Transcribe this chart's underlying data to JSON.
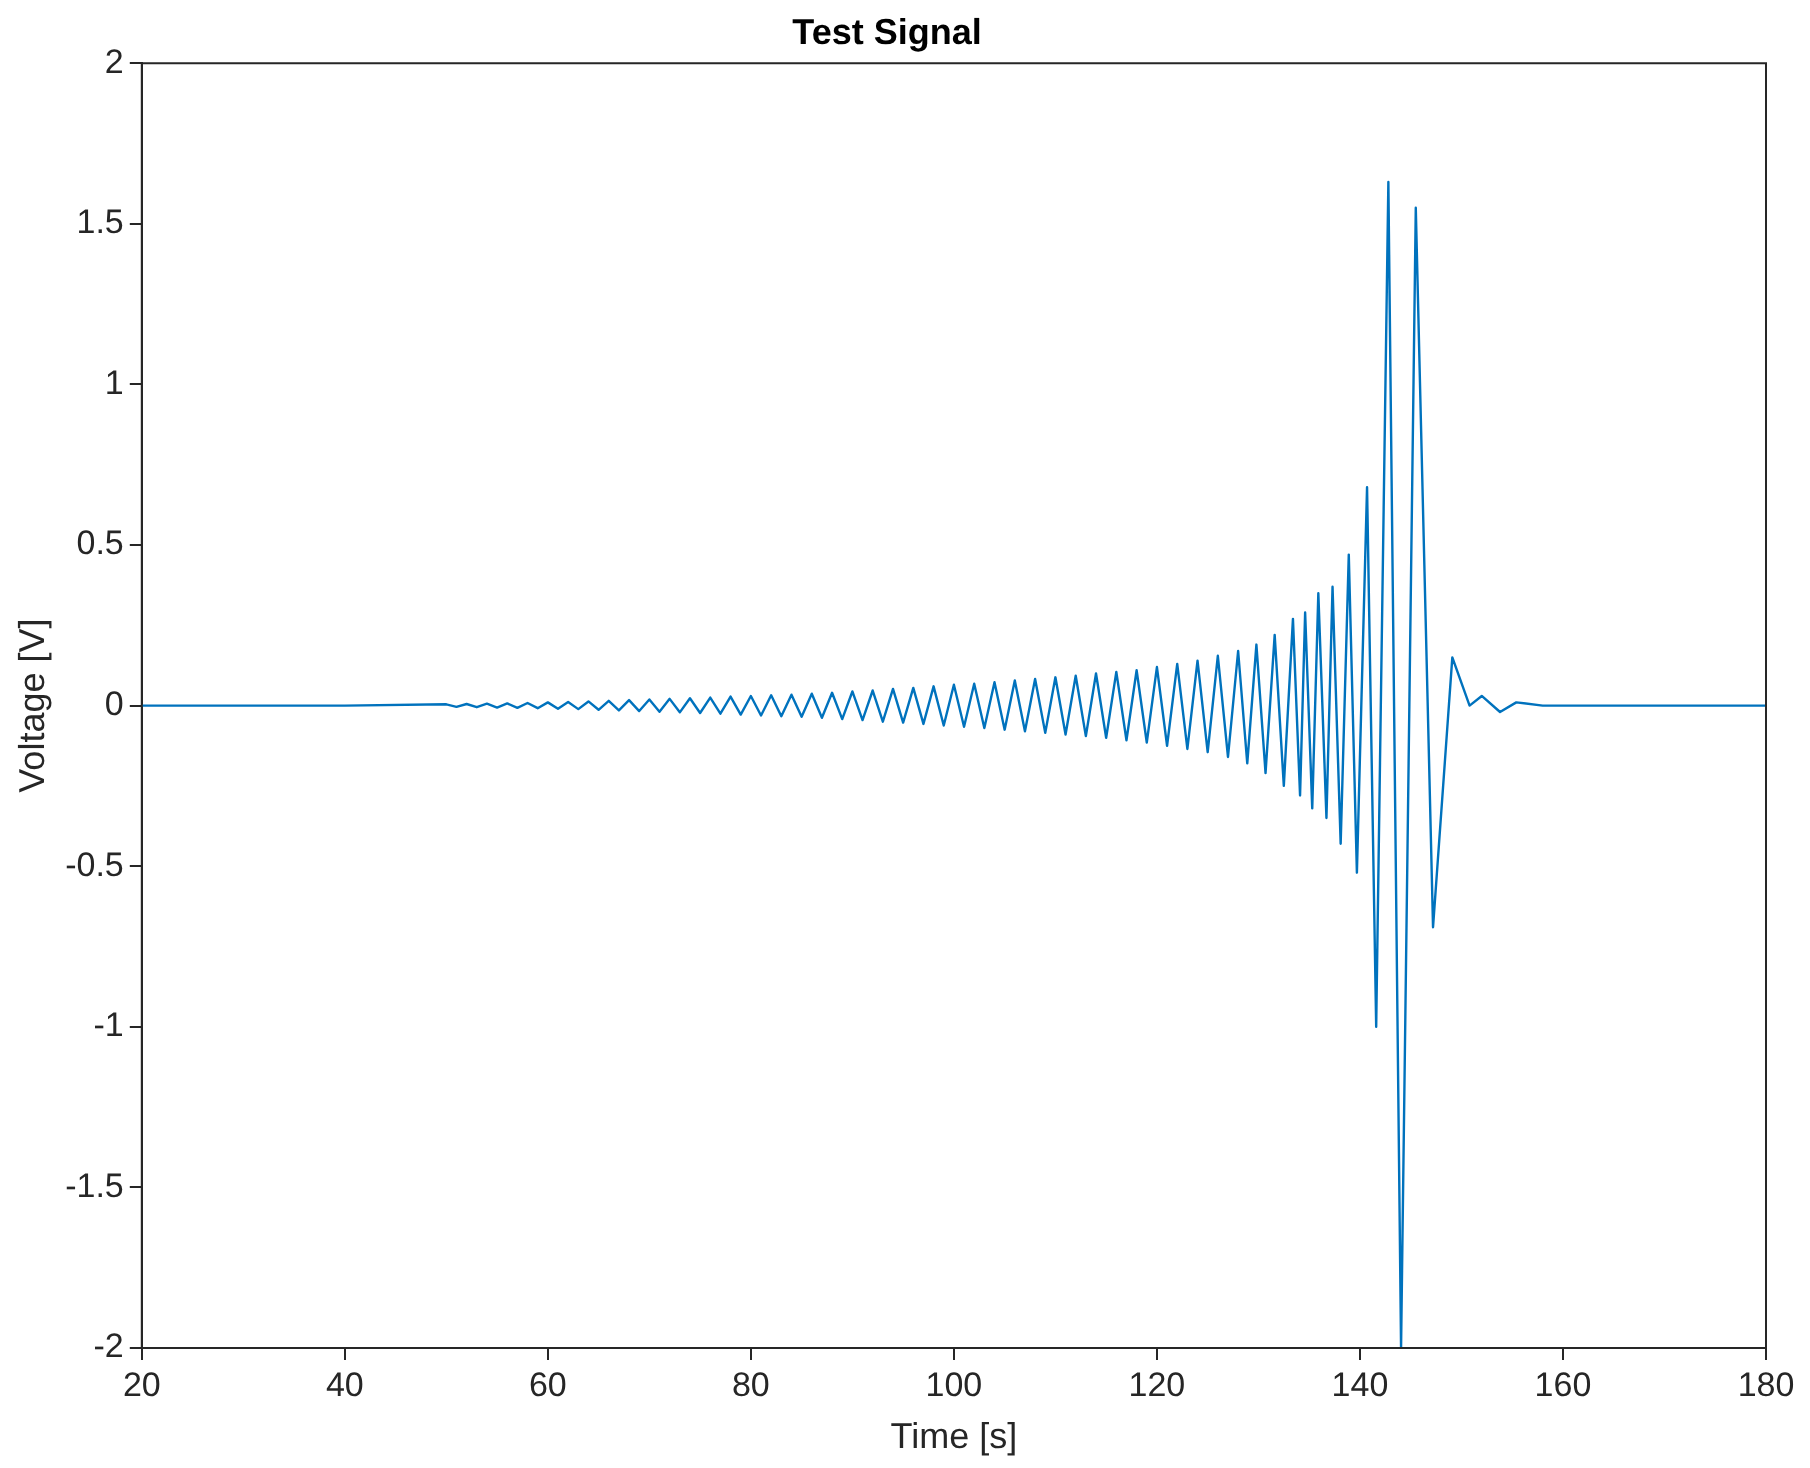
{
  "chart_data": {
    "type": "line",
    "title": "Test Signal",
    "xlabel": "Time [s]",
    "ylabel": "Voltage [V]",
    "xlim": [
      20,
      180
    ],
    "xticks": [
      20,
      40,
      60,
      80,
      100,
      120,
      140,
      160,
      180
    ],
    "ylim": [
      -2,
      2
    ],
    "yticks": [
      -2,
      -1.5,
      -1,
      -0.5,
      0,
      0.5,
      1,
      1.5,
      2
    ],
    "grid": false,
    "legend": false,
    "marker": "none",
    "line_style": "solid",
    "series": [
      {
        "color": "#0072bd",
        "x": [
          20,
          40,
          50,
          51,
          52,
          53,
          54,
          55,
          56,
          57,
          58,
          59,
          60,
          61,
          62,
          63,
          64,
          65,
          66,
          67,
          68,
          69,
          70,
          71,
          72,
          73,
          74,
          75,
          76,
          77,
          78,
          79,
          80,
          81,
          82,
          83,
          84,
          85,
          86,
          87,
          88,
          89,
          90,
          91,
          92,
          93,
          94,
          95,
          96,
          97,
          98,
          99,
          100,
          101,
          102,
          103,
          104,
          105,
          106,
          107,
          108,
          109,
          110,
          111,
          112,
          113,
          114,
          115,
          116,
          117,
          118,
          119,
          120,
          121,
          122,
          123,
          124,
          125,
          126,
          127,
          128,
          128.9,
          129.8,
          130.7,
          131.6,
          132.5,
          133.4,
          134.1,
          134.6,
          135.3,
          135.9,
          136.7,
          137.3,
          138.1,
          138.9,
          139.7,
          140.7,
          141.6,
          142.8,
          144.05,
          145.5,
          147.2,
          149.1,
          150.8,
          152,
          153.8,
          155.4,
          158,
          180
        ],
        "values": [
          0,
          0,
          0.004,
          -0.004,
          0.005,
          -0.005,
          0.006,
          -0.006,
          0.007,
          -0.007,
          0.008,
          -0.008,
          0.01,
          -0.01,
          0.011,
          -0.011,
          0.013,
          -0.013,
          0.015,
          -0.015,
          0.017,
          -0.017,
          0.019,
          -0.019,
          0.021,
          -0.021,
          0.023,
          -0.023,
          0.025,
          -0.025,
          0.028,
          -0.028,
          0.03,
          -0.031,
          0.032,
          -0.033,
          0.034,
          -0.035,
          0.037,
          -0.038,
          0.04,
          -0.042,
          0.044,
          -0.045,
          0.047,
          -0.05,
          0.052,
          -0.053,
          0.055,
          -0.057,
          0.06,
          -0.062,
          0.065,
          -0.066,
          0.068,
          -0.07,
          0.073,
          -0.075,
          0.078,
          -0.08,
          0.083,
          -0.085,
          0.088,
          -0.09,
          0.093,
          -0.095,
          0.1,
          -0.1,
          0.105,
          -0.108,
          0.11,
          -0.115,
          0.12,
          -0.125,
          0.13,
          -0.135,
          0.14,
          -0.145,
          0.155,
          -0.16,
          0.17,
          -0.18,
          0.19,
          -0.21,
          0.22,
          -0.25,
          0.27,
          -0.28,
          0.29,
          -0.32,
          0.35,
          -0.35,
          0.37,
          -0.43,
          0.47,
          -0.52,
          0.68,
          -1.0,
          1.63,
          -2.0,
          1.55,
          -0.69,
          0.15,
          0,
          0.03,
          -0.02,
          0.01,
          0,
          0
        ]
      }
    ]
  }
}
